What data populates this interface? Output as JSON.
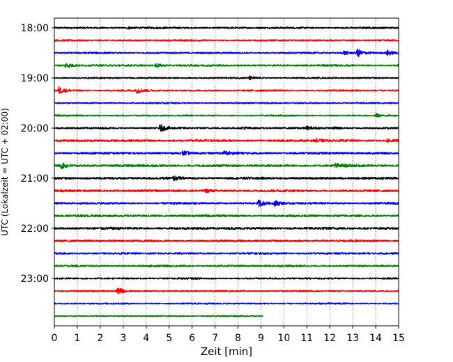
{
  "chart_data": {
    "type": "line",
    "xlabel": "Zeit  [min]",
    "ylabel": "UTC (Lokalzeit = UTC + 02:00)",
    "xlim": [
      0,
      15
    ],
    "x_ticks": [
      "0",
      "1",
      "2",
      "3",
      "4",
      "5",
      "6",
      "7",
      "8",
      "9",
      "10",
      "11",
      "12",
      "13",
      "14",
      "15"
    ],
    "y_tick_labels": [
      "18:00",
      "19:00",
      "20:00",
      "21:00",
      "22:00",
      "23:00"
    ],
    "grid": "vertical dotted",
    "trace_interval_minutes": 15,
    "color_cycle": [
      "#000000",
      "#ff0000",
      "#0000ff",
      "#008000"
    ],
    "traces": [
      {
        "start": "18:00",
        "end_minute": 15,
        "noise": 0.5,
        "events": [
          {
            "t": 3.2,
            "amp": 0.8
          }
        ]
      },
      {
        "start": "18:15",
        "end_minute": 15,
        "noise": 0.45,
        "events": []
      },
      {
        "start": "18:30",
        "end_minute": 15,
        "noise": 0.45,
        "events": [
          {
            "t": 12.6,
            "amp": 1.6
          },
          {
            "t": 13.2,
            "amp": 3.0
          },
          {
            "t": 14.5,
            "amp": 2.0
          }
        ]
      },
      {
        "start": "18:45",
        "end_minute": 15,
        "noise": 0.5,
        "events": [
          {
            "t": 0.5,
            "amp": 1.8
          },
          {
            "t": 4.4,
            "amp": 1.6
          }
        ]
      },
      {
        "start": "19:00",
        "end_minute": 15,
        "noise": 0.4,
        "events": [
          {
            "t": 8.5,
            "amp": 1.2
          }
        ]
      },
      {
        "start": "19:15",
        "end_minute": 15,
        "noise": 0.45,
        "events": [
          {
            "t": 0.2,
            "amp": 2.5
          },
          {
            "t": 3.6,
            "amp": 1.8
          }
        ]
      },
      {
        "start": "19:30",
        "end_minute": 15,
        "noise": 0.4,
        "events": []
      },
      {
        "start": "19:45",
        "end_minute": 15,
        "noise": 0.4,
        "events": [
          {
            "t": 14.0,
            "amp": 1.4
          }
        ]
      },
      {
        "start": "20:00",
        "end_minute": 15,
        "noise": 0.5,
        "events": [
          {
            "t": 4.6,
            "amp": 2.6
          },
          {
            "t": 8.2,
            "amp": 1.0
          },
          {
            "t": 11.0,
            "amp": 1.0
          },
          {
            "t": 12.2,
            "amp": 1.0
          }
        ]
      },
      {
        "start": "20:15",
        "end_minute": 15,
        "noise": 0.6,
        "events": [
          {
            "t": 11.4,
            "amp": 1.2
          },
          {
            "t": 14.5,
            "amp": 1.3
          }
        ]
      },
      {
        "start": "20:30",
        "end_minute": 15,
        "noise": 0.6,
        "events": [
          {
            "t": 5.6,
            "amp": 1.5
          },
          {
            "t": 7.4,
            "amp": 1.2
          }
        ]
      },
      {
        "start": "20:45",
        "end_minute": 15,
        "noise": 0.65,
        "events": [
          {
            "t": 0.3,
            "amp": 1.8
          },
          {
            "t": 12.2,
            "amp": 1.6
          }
        ]
      },
      {
        "start": "21:00",
        "end_minute": 15,
        "noise": 0.65,
        "events": [
          {
            "t": 5.2,
            "amp": 1.2
          }
        ]
      },
      {
        "start": "21:15",
        "end_minute": 15,
        "noise": 0.6,
        "events": [
          {
            "t": 6.6,
            "amp": 1.0
          }
        ]
      },
      {
        "start": "21:30",
        "end_minute": 15,
        "noise": 0.55,
        "events": [
          {
            "t": 8.9,
            "amp": 2.4
          },
          {
            "t": 9.6,
            "amp": 2.0
          }
        ]
      },
      {
        "start": "21:45",
        "end_minute": 15,
        "noise": 0.6,
        "events": []
      },
      {
        "start": "22:00",
        "end_minute": 15,
        "noise": 0.65,
        "events": []
      },
      {
        "start": "22:15",
        "end_minute": 15,
        "noise": 0.6,
        "events": []
      },
      {
        "start": "22:30",
        "end_minute": 15,
        "noise": 0.5,
        "events": []
      },
      {
        "start": "22:45",
        "end_minute": 15,
        "noise": 0.5,
        "events": []
      },
      {
        "start": "23:00",
        "end_minute": 15,
        "noise": 0.45,
        "events": []
      },
      {
        "start": "23:15",
        "end_minute": 15,
        "noise": 0.4,
        "events": [
          {
            "t": 2.75,
            "amp": 3.0
          }
        ]
      },
      {
        "start": "23:30",
        "end_minute": 15,
        "noise": 0.4,
        "events": []
      },
      {
        "start": "23:45",
        "end_minute": 9.1,
        "noise": 0.35,
        "events": []
      }
    ]
  }
}
